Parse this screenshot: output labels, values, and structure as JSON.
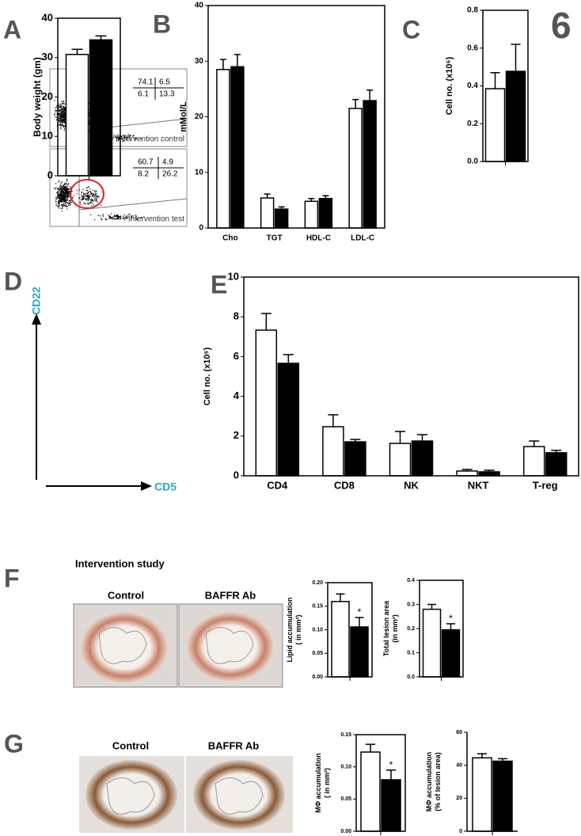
{
  "chart_data": [
    {
      "type": "bar",
      "ylabel": [
        "Body weight (gm)"
      ],
      "categories": [
        null
      ],
      "series": [
        {
          "color": "#ffffff",
          "values": [
            30.8
          ],
          "errors": [
            1.3
          ]
        },
        {
          "color": "#000000",
          "values": [
            34.5
          ],
          "errors": [
            1.0
          ]
        }
      ],
      "ylim": [
        0,
        40
      ],
      "yticks": [
        0,
        10,
        20,
        30,
        40
      ]
    },
    {
      "type": "bar",
      "ylabel": [
        "mMol/L"
      ],
      "categories": [
        "Cho",
        "TGT",
        "HDL-C",
        "LDL-C"
      ],
      "series": [
        {
          "color": "#ffffff",
          "values": [
            28.5,
            5.4,
            4.8,
            21.5
          ],
          "errors": [
            1.8,
            0.7,
            0.5,
            1.6
          ]
        },
        {
          "color": "#000000",
          "values": [
            29.0,
            3.4,
            5.3,
            22.9
          ],
          "errors": [
            2.2,
            0.4,
            0.5,
            1.9
          ]
        }
      ],
      "ylim": [
        0,
        40
      ],
      "yticks": [
        0,
        10,
        20,
        30,
        40
      ]
    },
    {
      "type": "bar",
      "ylabel": [
        "Cell  no. (x10⁶)"
      ],
      "categories": [
        null
      ],
      "series": [
        {
          "color": "#ffffff",
          "values": [
            0.385
          ],
          "errors": [
            0.085
          ]
        },
        {
          "color": "#000000",
          "values": [
            0.477
          ],
          "errors": [
            0.143
          ]
        }
      ],
      "ylim": [
        0,
        0.8
      ],
      "yticks": [
        {
          "value": 0,
          "label": "0.0"
        },
        0.2,
        0.4,
        0.6,
        0.8
      ]
    },
    {
      "type": "bar",
      "ylabel": [
        "Cell no. (x10⁶)"
      ],
      "categories": [
        "CD4",
        "CD8",
        "NK",
        "NKT",
        "T-reg"
      ],
      "series": [
        {
          "color": "#ffffff",
          "values": [
            7.33,
            2.47,
            1.63,
            0.24,
            1.47
          ],
          "errors": [
            0.84,
            0.6,
            0.6,
            0.08,
            0.28
          ]
        },
        {
          "color": "#000000",
          "values": [
            5.66,
            1.71,
            1.75,
            0.2,
            1.16
          ],
          "errors": [
            0.44,
            0.12,
            0.32,
            0.08,
            0.12
          ]
        }
      ],
      "ylim": [
        0,
        10
      ],
      "yticks": [
        0,
        2,
        4,
        6,
        8,
        10
      ]
    },
    {
      "type": "bar",
      "ylabel": [
        "Lipid accumulation",
        "( in mm²)"
      ],
      "categories": [
        null
      ],
      "annotations": [
        "*"
      ],
      "series": [
        {
          "color": "#ffffff",
          "values": [
            0.16
          ],
          "errors": [
            0.016
          ]
        },
        {
          "color": "#000000",
          "values": [
            0.106
          ],
          "errors": [
            0.02
          ]
        }
      ],
      "ylim": [
        0,
        0.2
      ],
      "yticks": [
        {
          "value": 0,
          "label": "0.00"
        },
        0.05,
        {
          "value": 0.1,
          "label": "0.10"
        },
        0.15,
        {
          "value": 0.2,
          "label": "0.20"
        }
      ]
    },
    {
      "type": "bar",
      "ylabel": [
        "Total lesion area",
        "(in mm²)"
      ],
      "categories": [
        null
      ],
      "annotations": [
        "*"
      ],
      "series": [
        {
          "color": "#ffffff",
          "values": [
            0.28
          ],
          "errors": [
            0.02
          ]
        },
        {
          "color": "#000000",
          "values": [
            0.195
          ],
          "errors": [
            0.025
          ]
        }
      ],
      "ylim": [
        0,
        0.4
      ],
      "yticks": [
        {
          "value": 0,
          "label": "0.0"
        },
        0.1,
        0.2,
        0.3,
        0.4
      ]
    },
    {
      "type": "bar",
      "ylabel": [
        "MΦ accumulation",
        "( in mm²)"
      ],
      "categories": [
        null
      ],
      "annotations": [
        "*"
      ],
      "series": [
        {
          "color": "#ffffff",
          "values": [
            0.123
          ],
          "errors": [
            0.012
          ]
        },
        {
          "color": "#000000",
          "values": [
            0.08
          ],
          "errors": [
            0.015
          ]
        }
      ],
      "ylim": [
        0,
        0.15
      ],
      "yticks": [
        {
          "value": 0,
          "label": "0.00"
        },
        0.05,
        {
          "value": 0.1,
          "label": "0.10"
        },
        0.15
      ]
    },
    {
      "type": "bar",
      "ylabel": [
        "MΦ accumulation",
        "(% of lesion area)"
      ],
      "categories": [
        null
      ],
      "series": [
        {
          "color": "#ffffff",
          "values": [
            44.5
          ],
          "errors": [
            2.5
          ]
        },
        {
          "color": "#000000",
          "values": [
            42.5
          ],
          "errors": [
            1.5
          ]
        }
      ],
      "ylim": [
        0,
        60
      ],
      "yticks": [
        0,
        20,
        40,
        60
      ]
    }
  ],
  "figure": {
    "panel_labels": [
      "A",
      "B",
      "C",
      "D",
      "E",
      "F",
      "G"
    ],
    "page_number": "6",
    "flow": {
      "y_axis": "CD22",
      "x_axis": "CD5",
      "plots": [
        {
          "label": "Intervention control",
          "quadrants": [
            74.1,
            6.5,
            6.1,
            13.3
          ]
        },
        {
          "label": "Intervention test",
          "quadrants": [
            60.7,
            4.9,
            8.2,
            26.2
          ]
        }
      ]
    },
    "histology": {
      "title": "Intervention study",
      "f_labels": [
        "Control",
        "BAFFR Ab"
      ],
      "g_labels": [
        "Control",
        "BAFFR Ab"
      ]
    }
  }
}
